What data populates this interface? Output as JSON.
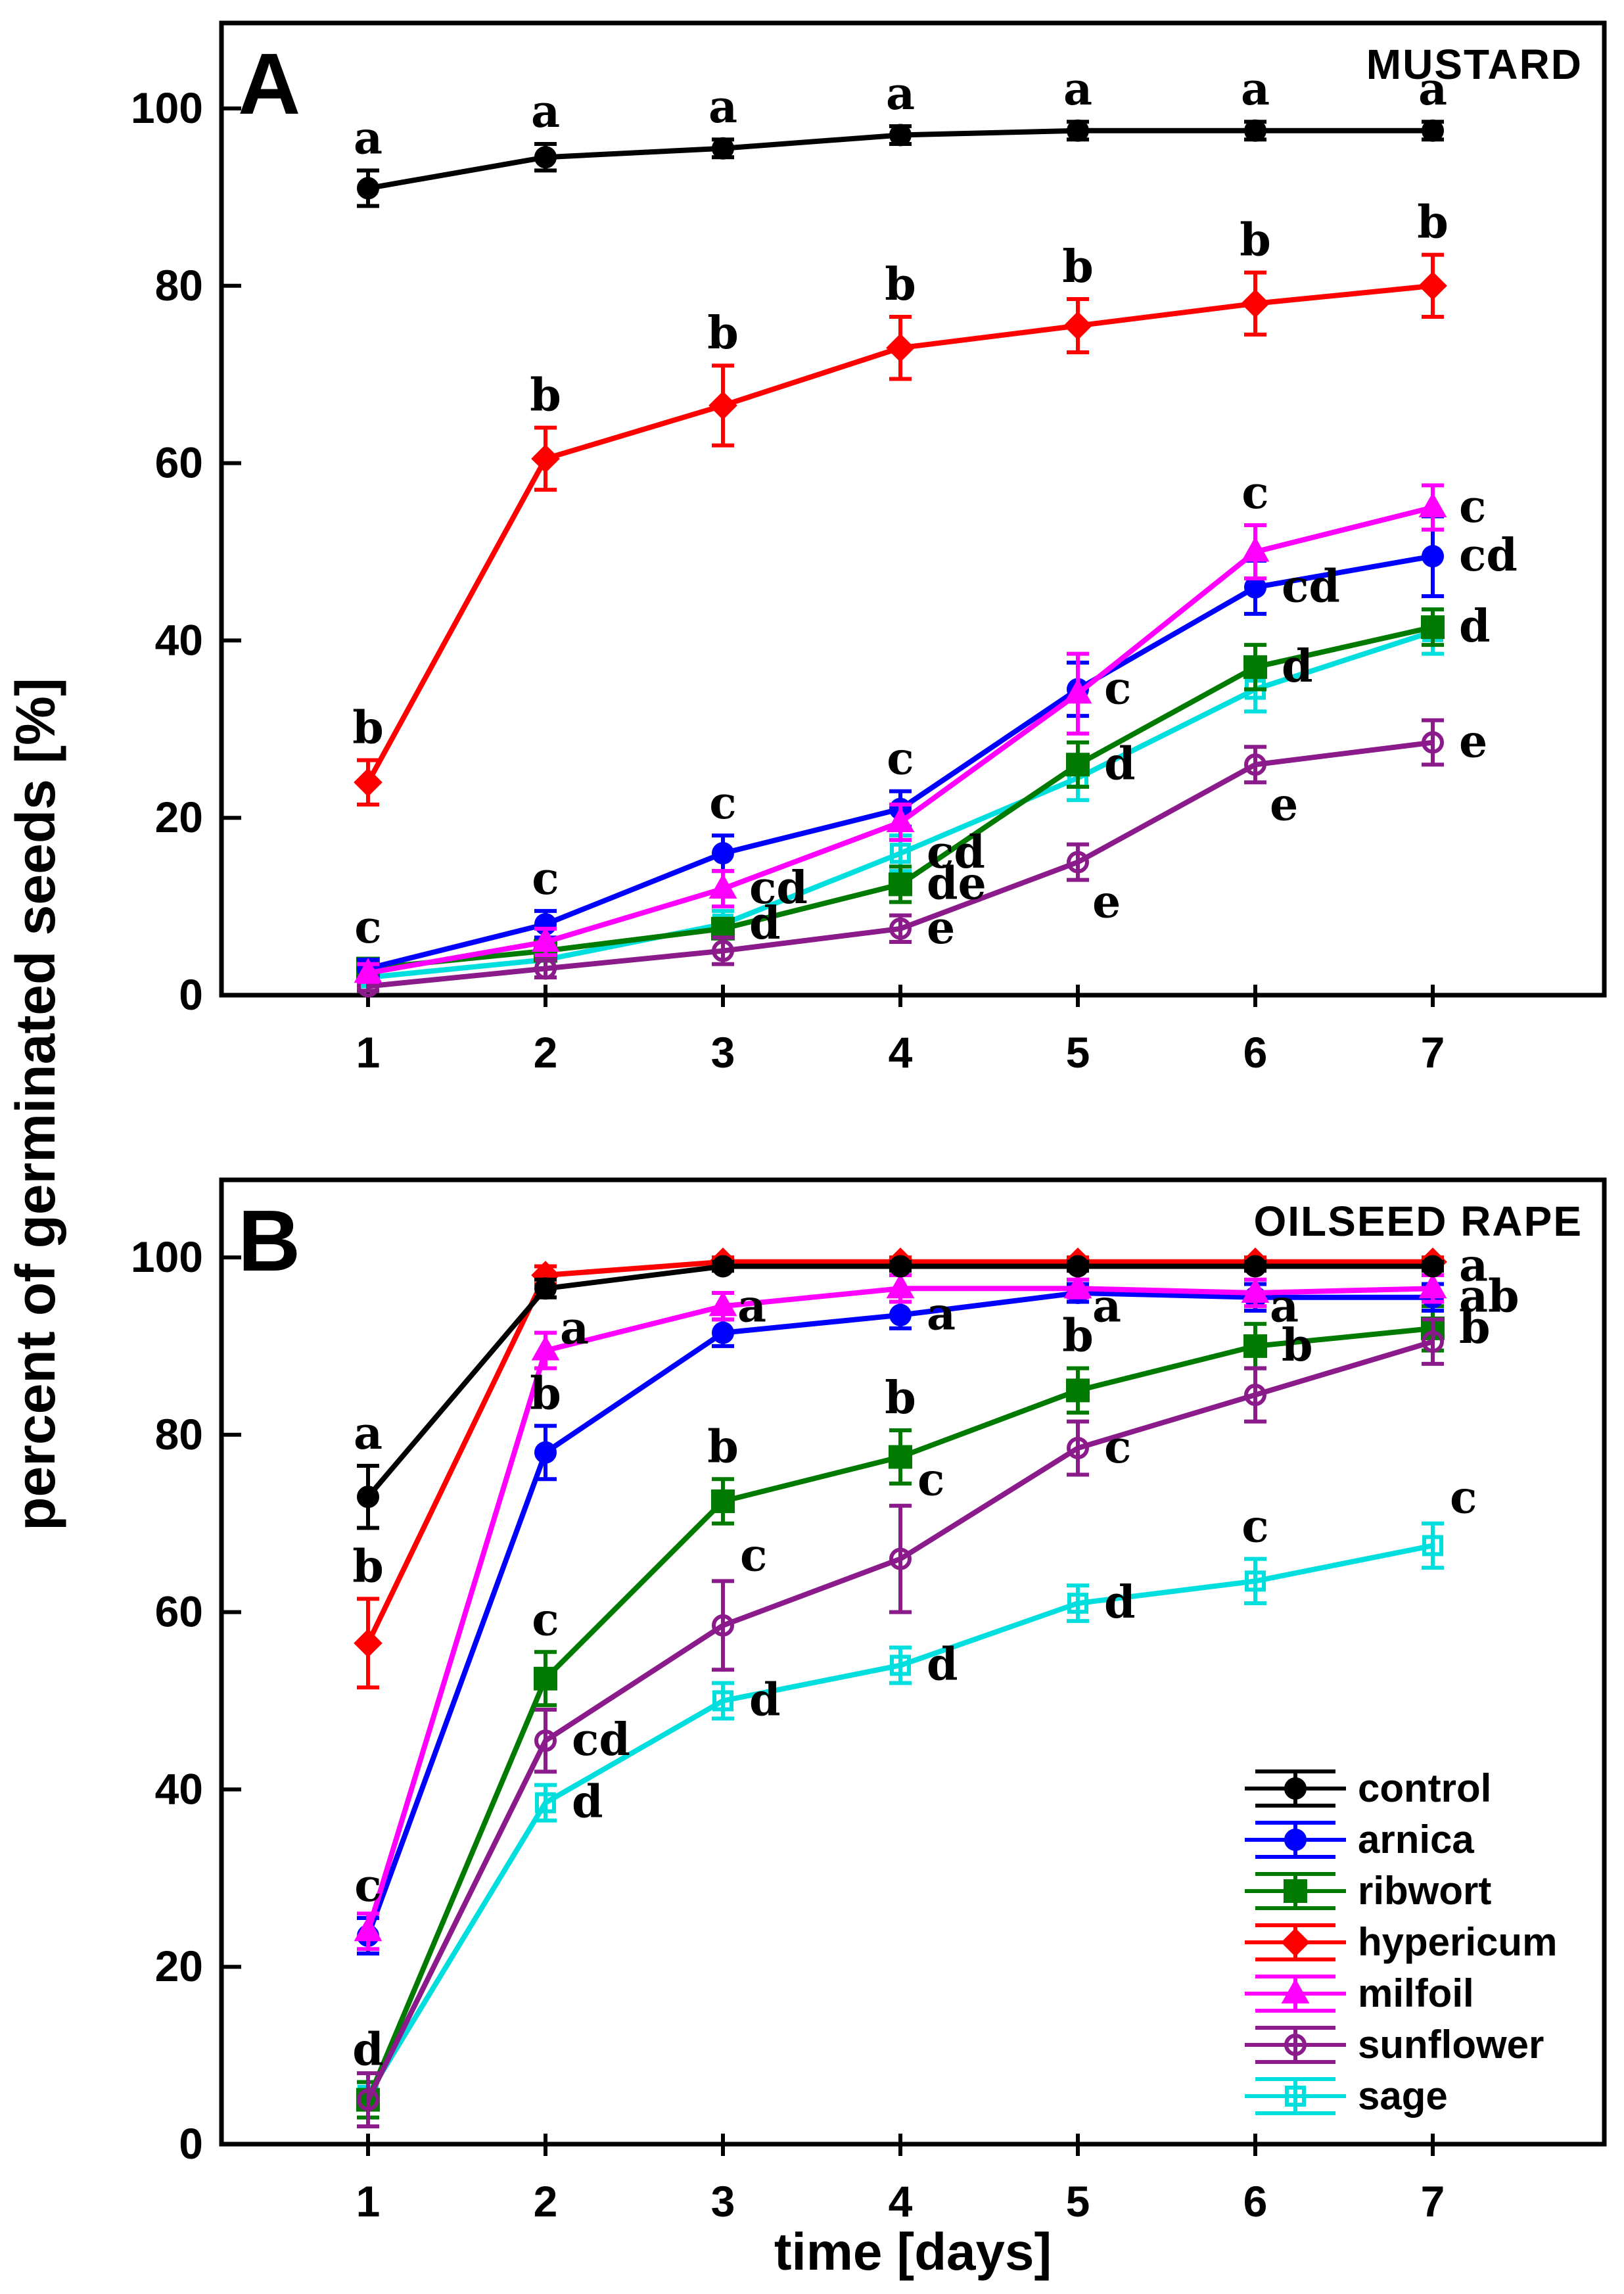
{
  "figure": {
    "y_axis_title": "percent of germinated seeds [%]",
    "x_axis_title": "time [days]"
  },
  "chart_data": [
    {
      "type": "line",
      "panel_label": "A",
      "title": "MUSTARD",
      "x": [
        1,
        2,
        3,
        4,
        5,
        6,
        7
      ],
      "y_ticks": [
        0,
        20,
        40,
        60,
        80,
        100
      ],
      "x_ticks": [
        1,
        2,
        3,
        4,
        5,
        6,
        7
      ],
      "ylim": [
        0,
        110
      ],
      "grid": false,
      "series": [
        {
          "name": "control",
          "color": "#000000",
          "marker": "circle",
          "filled": true,
          "values": [
            91,
            94.5,
            95.5,
            97,
            97.5,
            97.5,
            97.5
          ],
          "errors": [
            2,
            1.5,
            1,
            1,
            1,
            1,
            1
          ],
          "letters": [
            "a",
            "a",
            "a",
            "a",
            "a",
            "a",
            "a"
          ],
          "letter_pos": [
            "t",
            "t",
            "t",
            "t",
            "t",
            "t",
            "t"
          ]
        },
        {
          "name": "arnica",
          "color": "#0000FF",
          "marker": "circle",
          "filled": true,
          "values": [
            3,
            8,
            16,
            21,
            34.5,
            46,
            49.5
          ],
          "errors": [
            1,
            1.5,
            2,
            2,
            3,
            3,
            4.5
          ],
          "letters": [
            "c",
            "c",
            "c",
            "c",
            "c",
            "cd",
            "cd"
          ],
          "letter_pos": [
            "t",
            "t",
            "t",
            "t",
            "r",
            "r",
            "r"
          ]
        },
        {
          "name": "ribwort",
          "color": "#007A00",
          "marker": "square",
          "filled": true,
          "values": [
            3,
            5,
            7.5,
            12.5,
            26,
            37,
            41.5
          ],
          "errors": [
            1,
            1,
            1,
            2,
            2.5,
            2.5,
            2
          ],
          "letters": [
            "",
            "",
            "",
            "de",
            "d",
            "d",
            "d"
          ],
          "letter_pos": [
            "",
            "",
            "",
            "r",
            "r",
            "r",
            "r"
          ]
        },
        {
          "name": "hypericum",
          "color": "#FF0000",
          "marker": "diamond",
          "filled": true,
          "values": [
            24,
            60.5,
            66.5,
            73,
            75.5,
            78,
            80
          ],
          "errors": [
            2.5,
            3.5,
            4.5,
            3.5,
            3,
            3.5,
            3.5
          ],
          "letters": [
            "b",
            "b",
            "b",
            "b",
            "b",
            "b",
            "b"
          ],
          "letter_pos": [
            "t",
            "t",
            "t",
            "t",
            "t",
            "t",
            "t"
          ]
        },
        {
          "name": "milfoil",
          "color": "#FF00FF",
          "marker": "triangle",
          "filled": true,
          "values": [
            2.5,
            6,
            12,
            19.5,
            34,
            50,
            55
          ],
          "errors": [
            1,
            1.5,
            2,
            2,
            4.5,
            3,
            2.5
          ],
          "letters": [
            "",
            "",
            "cd",
            "",
            "",
            "c",
            "c"
          ],
          "letter_pos": [
            "",
            "",
            "r",
            "",
            "",
            "t",
            "r"
          ]
        },
        {
          "name": "sunflower",
          "color": "#8B1A8B",
          "marker": "circle",
          "filled": false,
          "values": [
            1,
            3,
            5,
            7.5,
            15,
            26,
            28.5
          ],
          "errors": [
            0.5,
            1,
            1.5,
            1.5,
            2,
            2,
            2.5
          ],
          "letters": [
            "",
            "",
            "",
            "e",
            "e",
            "e",
            "e"
          ],
          "letter_pos": [
            "",
            "",
            "",
            "r",
            "br",
            "br",
            "r"
          ]
        },
        {
          "name": "sage",
          "color": "#00DEDE",
          "marker": "square",
          "filled": false,
          "values": [
            2,
            4,
            8,
            16,
            24.5,
            34.5,
            41
          ],
          "errors": [
            1,
            1,
            1.5,
            2,
            2.5,
            2.5,
            2.5
          ],
          "letters": [
            "",
            "",
            "d",
            "cd",
            "",
            "",
            ""
          ],
          "letter_pos": [
            "",
            "",
            "r",
            "r",
            "",
            "",
            ""
          ]
        }
      ]
    },
    {
      "type": "line",
      "panel_label": "B",
      "title": "OILSEED RAPE",
      "x": [
        1,
        2,
        3,
        4,
        5,
        6,
        7
      ],
      "y_ticks": [
        0,
        20,
        40,
        60,
        80,
        100
      ],
      "x_ticks": [
        1,
        2,
        3,
        4,
        5,
        6,
        7
      ],
      "ylim": [
        0,
        110
      ],
      "grid": false,
      "legend_position": "lower right",
      "series": [
        {
          "name": "control",
          "color": "#000000",
          "marker": "circle",
          "filled": true,
          "values": [
            73,
            96.5,
            99,
            99,
            99,
            99,
            99
          ],
          "errors": [
            3.5,
            1,
            0.5,
            0.5,
            0.5,
            0.5,
            0.5
          ],
          "letters": [
            "a",
            "a",
            "a",
            "",
            "a",
            "a",
            "a"
          ],
          "letter_pos": [
            "t",
            "br",
            "br",
            "",
            "br",
            "br",
            "r"
          ]
        },
        {
          "name": "arnica",
          "color": "#0000FF",
          "marker": "circle",
          "filled": true,
          "values": [
            23.5,
            78,
            91.5,
            93.5,
            96,
            95.5,
            95.5
          ],
          "errors": [
            2,
            3,
            1.5,
            1.5,
            1,
            1.5,
            1.5
          ],
          "letters": [
            "c",
            "b",
            "",
            "a",
            "",
            "",
            "ab"
          ],
          "letter_pos": [
            "t",
            "t",
            "",
            "r",
            "",
            "",
            "r"
          ]
        },
        {
          "name": "ribwort",
          "color": "#007A00",
          "marker": "square",
          "filled": true,
          "values": [
            5,
            52.5,
            72.5,
            77.5,
            85,
            90,
            92
          ],
          "errors": [
            2,
            3,
            2.5,
            3,
            2.5,
            2.5,
            2.5
          ],
          "letters": [
            "d",
            "c",
            "b",
            "b",
            "b",
            "b",
            "b"
          ],
          "letter_pos": [
            "t",
            "t",
            "t",
            "t",
            "t",
            "r",
            "r"
          ]
        },
        {
          "name": "hypericum",
          "color": "#FF0000",
          "marker": "diamond",
          "filled": true,
          "values": [
            56.5,
            98,
            99.5,
            99.5,
            99.5,
            99.5,
            99.5
          ],
          "errors": [
            5,
            1,
            0.5,
            0.5,
            0.5,
            0.5,
            0.5
          ],
          "letters": [
            "b",
            "",
            "",
            "",
            "",
            "",
            ""
          ],
          "letter_pos": [
            "t",
            "",
            "",
            "",
            "",
            "",
            ""
          ]
        },
        {
          "name": "milfoil",
          "color": "#FF00FF",
          "marker": "triangle",
          "filled": true,
          "values": [
            24,
            89.5,
            94.5,
            96.5,
            96.5,
            96,
            96.5
          ],
          "errors": [
            2,
            2,
            1.5,
            1.5,
            1,
            1.5,
            1.5
          ],
          "letters": [
            "",
            "",
            "",
            "",
            "",
            "",
            ""
          ],
          "letter_pos": [
            "",
            "",
            "",
            "",
            "",
            "",
            ""
          ]
        },
        {
          "name": "sunflower",
          "color": "#8B1A8B",
          "marker": "circle",
          "filled": false,
          "values": [
            5,
            45.5,
            58.5,
            66,
            78.5,
            84.5,
            90.5
          ],
          "errors": [
            3,
            3.5,
            5,
            6,
            3,
            3,
            2.5
          ],
          "letters": [
            "",
            "cd",
            "c",
            "c",
            "c",
            "",
            ""
          ],
          "letter_pos": [
            "",
            "r",
            "tr",
            "tr",
            "r",
            "",
            ""
          ]
        },
        {
          "name": "sage",
          "color": "#00DEDE",
          "marker": "square",
          "filled": false,
          "values": [
            5.5,
            38.5,
            50,
            54,
            61,
            63.5,
            67.5
          ],
          "errors": [
            1.5,
            2,
            2,
            2,
            2,
            2.5,
            2.5
          ],
          "letters": [
            "",
            "d",
            "d",
            "d",
            "d",
            "c",
            "c"
          ],
          "letter_pos": [
            "",
            "r",
            "r",
            "r",
            "r",
            "t",
            "tr"
          ]
        }
      ]
    }
  ],
  "legend": {
    "entries": [
      {
        "label": "control"
      },
      {
        "label": "arnica"
      },
      {
        "label": "ribwort"
      },
      {
        "label": "hypericum"
      },
      {
        "label": "milfoil"
      },
      {
        "label": "sunflower"
      },
      {
        "label": "sage"
      }
    ]
  }
}
